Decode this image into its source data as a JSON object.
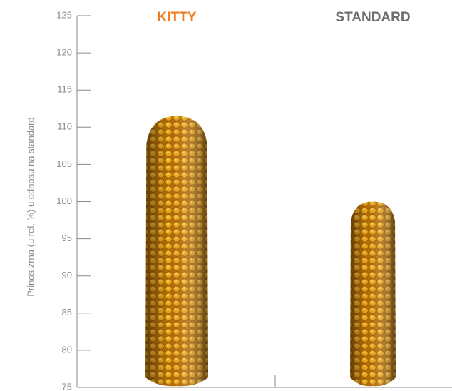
{
  "chart_data": {
    "type": "pictorial-bar",
    "y_label": "Prinos zrna (u rel. %) u odnosu na standard",
    "categories": [
      "KITTY",
      "STANDARD"
    ],
    "colors": [
      "#f07a1c",
      "#6d6e71"
    ],
    "values": [
      111.5,
      100
    ],
    "ylim": [
      75,
      125
    ],
    "yticks": [
      75,
      80,
      85,
      90,
      95,
      100,
      105,
      110,
      115,
      120,
      125
    ]
  }
}
